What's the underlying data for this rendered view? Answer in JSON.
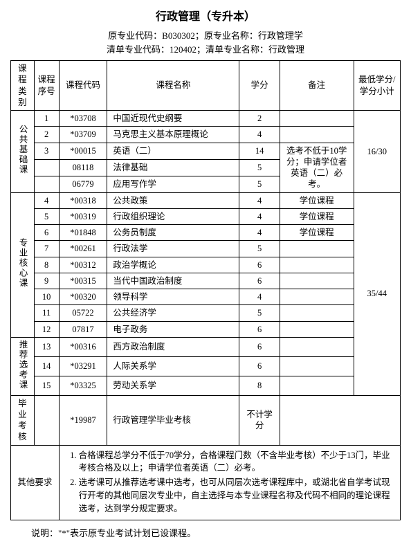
{
  "title": "行政管理（专升本）",
  "subtitle_line1": "原专业代码：B030302；原专业名称：行政管理学",
  "subtitle_line2": "清单专业代码：120402；清单专业名称：行政管理",
  "headers": {
    "category": "课程类别",
    "seq": "课程序号",
    "code": "课程代码",
    "name": "课程名称",
    "credit": "学分",
    "note": "备注",
    "min": "最低学分/学分小计"
  },
  "cat1": "公共基础课",
  "cat2": "专业核心课",
  "cat3": "推荐选考课",
  "cat4": "毕业考核",
  "cat5": "其他要求",
  "rows": {
    "r1": {
      "seq": "1",
      "code": "*03708",
      "name": "中国近现代史纲要",
      "credit": "2"
    },
    "r2": {
      "seq": "2",
      "code": "*03709",
      "name": "马克思主义基本原理概论",
      "credit": "4"
    },
    "r3": {
      "seq": "3",
      "code": "*00015",
      "name": "英语（二）",
      "credit": "14"
    },
    "r4": {
      "seq": "",
      "code": "08118",
      "name": "法律基础",
      "credit": "5"
    },
    "r5": {
      "seq": "",
      "code": "06779",
      "name": "应用写作学",
      "credit": "5"
    },
    "r6": {
      "seq": "4",
      "code": "*00318",
      "name": "公共政策",
      "credit": "4",
      "note": "学位课程"
    },
    "r7": {
      "seq": "5",
      "code": "*00319",
      "name": "行政组织理论",
      "credit": "4",
      "note": "学位课程"
    },
    "r8": {
      "seq": "6",
      "code": "*01848",
      "name": "公务员制度",
      "credit": "4",
      "note": "学位课程"
    },
    "r9": {
      "seq": "7",
      "code": "*00261",
      "name": "行政法学",
      "credit": "5"
    },
    "r10": {
      "seq": "8",
      "code": "*00312",
      "name": "政治学概论",
      "credit": "6"
    },
    "r11": {
      "seq": "9",
      "code": "*00315",
      "name": "当代中国政治制度",
      "credit": "6"
    },
    "r12": {
      "seq": "10",
      "code": "*00320",
      "name": "领导科学",
      "credit": "4"
    },
    "r13": {
      "seq": "11",
      "code": "05722",
      "name": "公共经济学",
      "credit": "5"
    },
    "r14": {
      "seq": "12",
      "code": "07817",
      "name": "电子政务",
      "credit": "6"
    },
    "r15": {
      "seq": "13",
      "code": "*00316",
      "name": "西方政治制度",
      "credit": "6"
    },
    "r16": {
      "seq": "14",
      "code": "*03291",
      "name": "人际关系学",
      "credit": "6"
    },
    "r17": {
      "seq": "15",
      "code": "*03325",
      "name": "劳动关系学",
      "credit": "8"
    },
    "r18": {
      "seq": "",
      "code": "*19987",
      "name": "行政管理学毕业考核",
      "credit": "不计学分"
    }
  },
  "note_english": "选考不低于10学分；申请学位者英语（二）必考。",
  "min1": "16/30",
  "min2": "35/44",
  "req1": "合格课程总学分不低于70学分，合格课程门数（不含毕业考核）不少于13门，毕业考核合格及以上；申请学位者英语（二）必考。",
  "req2": "选考课可从推荐选考课中选考，也可从同层次选考课程库中，或湖北省自学考试现行开考的其他同层次专业中，自主选择与本专业课程名称及代码不相同的理论课程选考，达到学分规定要求。",
  "footnote": "说明：\"*\"表示原专业考试计划已设课程。"
}
